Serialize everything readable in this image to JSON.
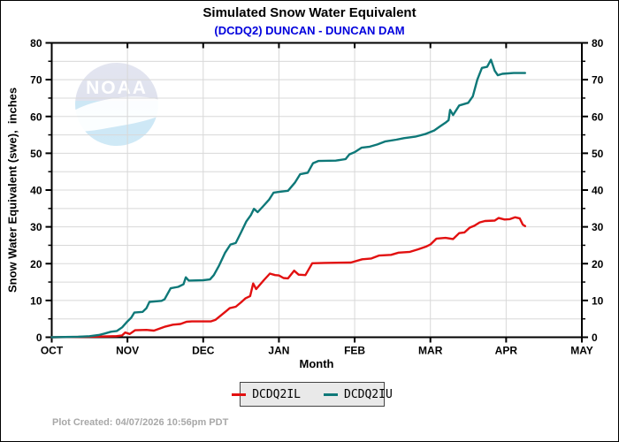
{
  "header": {
    "title": "Simulated Snow Water Equivalent",
    "subtitle": "(DCDQ2) DUNCAN - DUNCAN DAM",
    "subtitle_color": "#0000dd"
  },
  "watermark": {
    "text": "NOAA"
  },
  "axes": {
    "x_label": "Month",
    "y_label": "Snow Water Equivalent (swe),  inches",
    "x_tick_labels": [
      "OCT",
      "NOV",
      "DEC",
      "JAN",
      "FEB",
      "MAR",
      "APR",
      "MAY"
    ],
    "y_tick_values": [
      0,
      10,
      20,
      30,
      40,
      50,
      60,
      70,
      80
    ],
    "y_minor_step": 5,
    "grid_color": "#d8d8d8",
    "frame_color": "#000000"
  },
  "legend": {
    "labels": [
      "DCDQ2IL",
      "DCDQ2IU"
    ]
  },
  "footer": {
    "text": "Plot Created: 04/07/2026 10:56pm PDT"
  },
  "chart_data": {
    "type": "line",
    "title": "Simulated Snow Water Equivalent",
    "subtitle": "(DCDQ2) DUNCAN - DUNCAN DAM",
    "xlabel": "Month",
    "ylabel": "Snow Water Equivalent (swe), inches",
    "x_unit": "months since Oct 1 (0=OCT ... 7=MAY)",
    "xlim": [
      0,
      7
    ],
    "ylim": [
      0,
      80
    ],
    "grid": true,
    "legend_position": "bottom-center",
    "series": [
      {
        "name": "DCDQ2IL",
        "color": "#e21010",
        "points": [
          [
            0,
            0
          ],
          [
            0.5,
            0.15
          ],
          [
            0.85,
            0.3
          ],
          [
            0.93,
            0.5
          ],
          [
            0.97,
            1.3
          ],
          [
            1.03,
            0.9
          ],
          [
            1.1,
            1.9
          ],
          [
            1.25,
            2.0
          ],
          [
            1.35,
            1.8
          ],
          [
            1.5,
            2.9
          ],
          [
            1.6,
            3.4
          ],
          [
            1.7,
            3.6
          ],
          [
            1.78,
            4.2
          ],
          [
            1.85,
            4.3
          ],
          [
            2.1,
            4.3
          ],
          [
            2.16,
            4.7
          ],
          [
            2.25,
            6.2
          ],
          [
            2.35,
            7.9
          ],
          [
            2.43,
            8.3
          ],
          [
            2.5,
            9.5
          ],
          [
            2.56,
            10.6
          ],
          [
            2.62,
            11.2
          ],
          [
            2.66,
            14.6
          ],
          [
            2.7,
            13.1
          ],
          [
            2.8,
            15.5
          ],
          [
            2.88,
            17.3
          ],
          [
            2.95,
            16.9
          ],
          [
            3.0,
            16.8
          ],
          [
            3.06,
            16.1
          ],
          [
            3.12,
            16.0
          ],
          [
            3.2,
            18.1
          ],
          [
            3.26,
            17.0
          ],
          [
            3.35,
            16.9
          ],
          [
            3.44,
            20.1
          ],
          [
            3.6,
            20.2
          ],
          [
            3.95,
            20.3
          ],
          [
            4.1,
            21.2
          ],
          [
            4.22,
            21.4
          ],
          [
            4.32,
            22.2
          ],
          [
            4.48,
            22.4
          ],
          [
            4.58,
            23.0
          ],
          [
            4.73,
            23.2
          ],
          [
            4.84,
            23.9
          ],
          [
            4.95,
            24.7
          ],
          [
            5.0,
            25.2
          ],
          [
            5.08,
            26.8
          ],
          [
            5.2,
            27.0
          ],
          [
            5.3,
            26.7
          ],
          [
            5.38,
            28.3
          ],
          [
            5.45,
            28.5
          ],
          [
            5.52,
            29.8
          ],
          [
            5.58,
            30.3
          ],
          [
            5.65,
            31.2
          ],
          [
            5.72,
            31.6
          ],
          [
            5.85,
            31.7
          ],
          [
            5.9,
            32.4
          ],
          [
            5.98,
            32.0
          ],
          [
            6.05,
            32.1
          ],
          [
            6.12,
            32.6
          ],
          [
            6.18,
            32.3
          ],
          [
            6.22,
            30.6
          ],
          [
            6.25,
            30.2
          ]
        ]
      },
      {
        "name": "DCDQ2IU",
        "color": "#0e7878",
        "points": [
          [
            0,
            0
          ],
          [
            0.35,
            0.15
          ],
          [
            0.5,
            0.3
          ],
          [
            0.62,
            0.6
          ],
          [
            0.7,
            1.0
          ],
          [
            0.78,
            1.5
          ],
          [
            0.86,
            1.7
          ],
          [
            0.93,
            2.7
          ],
          [
            1.0,
            4.3
          ],
          [
            1.05,
            5.3
          ],
          [
            1.09,
            6.7
          ],
          [
            1.2,
            6.9
          ],
          [
            1.25,
            7.9
          ],
          [
            1.29,
            9.6
          ],
          [
            1.45,
            9.9
          ],
          [
            1.49,
            10.3
          ],
          [
            1.57,
            13.3
          ],
          [
            1.67,
            13.7
          ],
          [
            1.74,
            14.4
          ],
          [
            1.77,
            16.3
          ],
          [
            1.81,
            15.4
          ],
          [
            2.0,
            15.5
          ],
          [
            2.09,
            15.7
          ],
          [
            2.14,
            16.9
          ],
          [
            2.21,
            19.5
          ],
          [
            2.29,
            23.0
          ],
          [
            2.36,
            25.2
          ],
          [
            2.43,
            25.6
          ],
          [
            2.5,
            28.5
          ],
          [
            2.57,
            31.5
          ],
          [
            2.63,
            33.2
          ],
          [
            2.67,
            34.9
          ],
          [
            2.72,
            34.0
          ],
          [
            2.8,
            35.8
          ],
          [
            2.87,
            37.4
          ],
          [
            2.93,
            39.3
          ],
          [
            3.0,
            39.5
          ],
          [
            3.12,
            39.8
          ],
          [
            3.21,
            42.0
          ],
          [
            3.28,
            44.3
          ],
          [
            3.38,
            44.7
          ],
          [
            3.45,
            47.3
          ],
          [
            3.52,
            47.9
          ],
          [
            3.75,
            48.0
          ],
          [
            3.88,
            48.4
          ],
          [
            3.93,
            49.7
          ],
          [
            4.0,
            50.3
          ],
          [
            4.09,
            51.5
          ],
          [
            4.2,
            51.8
          ],
          [
            4.3,
            52.4
          ],
          [
            4.4,
            53.2
          ],
          [
            4.55,
            53.7
          ],
          [
            4.65,
            54.1
          ],
          [
            4.8,
            54.5
          ],
          [
            4.93,
            55.2
          ],
          [
            5.05,
            56.2
          ],
          [
            5.12,
            57.2
          ],
          [
            5.2,
            58.3
          ],
          [
            5.24,
            59.0
          ],
          [
            5.26,
            61.8
          ],
          [
            5.3,
            60.4
          ],
          [
            5.38,
            63.0
          ],
          [
            5.5,
            63.7
          ],
          [
            5.56,
            65.5
          ],
          [
            5.62,
            70.0
          ],
          [
            5.68,
            73.2
          ],
          [
            5.75,
            73.5
          ],
          [
            5.8,
            75.4
          ],
          [
            5.85,
            72.4
          ],
          [
            5.89,
            71.2
          ],
          [
            5.95,
            71.6
          ],
          [
            6.1,
            71.8
          ],
          [
            6.25,
            71.8
          ]
        ]
      }
    ]
  }
}
